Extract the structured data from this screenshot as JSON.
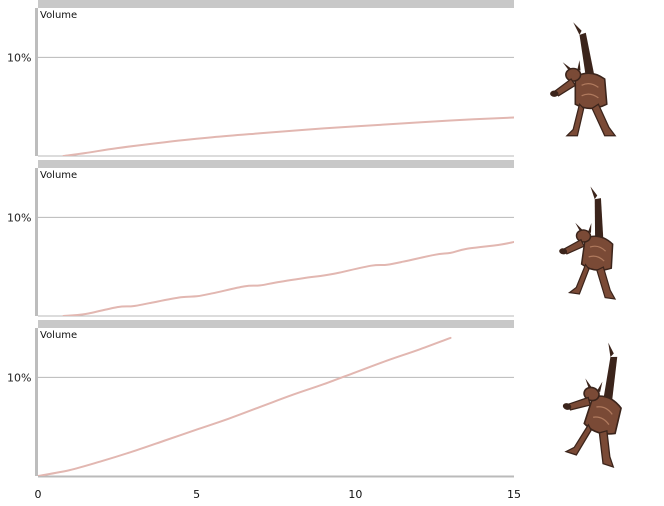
{
  "panels": [
    {
      "label": "Volume",
      "ytick": "10%"
    },
    {
      "label": "Volume",
      "ytick": "10%"
    },
    {
      "label": "Volume",
      "ytick": "10%"
    }
  ],
  "x_ticks": [
    "0",
    "5",
    "10",
    "15"
  ],
  "colors": {
    "line": "#e2b7b1",
    "grid": "#b8b8b8",
    "panel_bar": "#c8c8c8",
    "axis": "#bdbdbd",
    "creature_dark": "#3b241b",
    "creature_mid": "#7a4a36",
    "creature_light": "#b07a5e"
  },
  "creature_icon": "horned-creature-mesh",
  "chart_data": [
    {
      "type": "line",
      "title": "Volume",
      "xlabel": "",
      "ylabel": "",
      "xlim": [
        0,
        15
      ],
      "ylim": [
        0,
        0.15
      ],
      "grid": true,
      "yticks": [
        0.1
      ],
      "series": [
        {
          "x": [
            0.8,
            1.5,
            2.5,
            4,
            5.5,
            7,
            9,
            11,
            13,
            15
          ],
          "y": [
            0.0,
            0.003,
            0.008,
            0.014,
            0.019,
            0.023,
            0.028,
            0.032,
            0.036,
            0.039
          ]
        }
      ]
    },
    {
      "type": "line",
      "title": "Volume",
      "xlabel": "",
      "ylabel": "",
      "xlim": [
        0,
        15
      ],
      "ylim": [
        0,
        0.15
      ],
      "grid": true,
      "yticks": [
        0.1
      ],
      "series": [
        {
          "x": [
            0.8,
            1.5,
            2.5,
            3,
            3.5,
            4.5,
            5,
            5.5,
            6.5,
            7,
            7.5,
            8.5,
            9,
            9.5,
            10.5,
            11,
            11.5,
            12.5,
            13,
            13.5,
            14.5,
            15
          ],
          "y": [
            0.0,
            0.002,
            0.009,
            0.01,
            0.013,
            0.019,
            0.02,
            0.023,
            0.03,
            0.031,
            0.034,
            0.039,
            0.041,
            0.044,
            0.051,
            0.052,
            0.055,
            0.062,
            0.064,
            0.068,
            0.072,
            0.075
          ]
        }
      ]
    },
    {
      "type": "line",
      "title": "Volume",
      "xlabel": "",
      "ylabel": "",
      "xlim": [
        0,
        15
      ],
      "ylim": [
        0,
        0.15
      ],
      "grid": true,
      "yticks": [
        0.1
      ],
      "series": [
        {
          "x": [
            0,
            1,
            2,
            3,
            4,
            5,
            6,
            7,
            8,
            9,
            10,
            11,
            12,
            13
          ],
          "y": [
            0.0,
            0.006,
            0.015,
            0.025,
            0.036,
            0.047,
            0.058,
            0.07,
            0.082,
            0.093,
            0.105,
            0.117,
            0.128,
            0.14
          ]
        }
      ]
    }
  ]
}
